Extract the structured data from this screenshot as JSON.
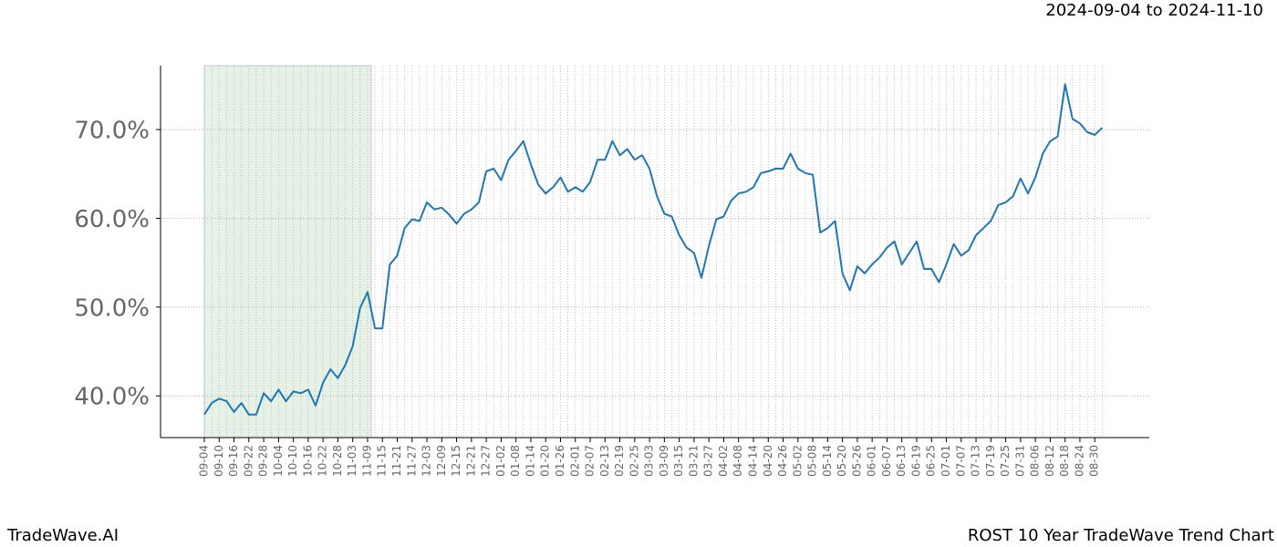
{
  "chart_data": {
    "type": "line",
    "title": "ROST 10 Year TradeWave Trend Chart",
    "brand": "TradeWave.AI",
    "highlight": {
      "start": "09-04",
      "end": "11-09",
      "label": "2024-09-04 to 2024-11-10",
      "color": "#e6f2e6"
    },
    "color": "#1f77b4",
    "grid": true,
    "ylim": [
      35.3,
      77.2
    ],
    "yticks": [
      {
        "value": 40,
        "label": "40.0%"
      },
      {
        "value": 50,
        "label": "50.0%"
      },
      {
        "value": 60,
        "label": "60.0%"
      },
      {
        "value": 70,
        "label": "70.0%"
      }
    ],
    "categories": [
      "09-04",
      null,
      "09-10",
      null,
      "09-16",
      null,
      "09-22",
      null,
      "09-28",
      null,
      "10-04",
      null,
      "10-10",
      null,
      "10-16",
      null,
      "10-22",
      null,
      "10-28",
      null,
      "11-03",
      null,
      "11-09",
      null,
      "11-15",
      null,
      "11-21",
      null,
      "11-27",
      null,
      "12-03",
      null,
      "12-09",
      null,
      "12-15",
      null,
      "12-21",
      null,
      "12-27",
      null,
      "01-02",
      null,
      "01-08",
      null,
      "01-14",
      null,
      "01-20",
      null,
      "01-26",
      null,
      "02-01",
      null,
      "02-07",
      null,
      "02-13",
      null,
      "02-19",
      null,
      "02-25",
      null,
      "03-03",
      null,
      "03-09",
      null,
      "03-15",
      null,
      "03-21",
      null,
      "03-27",
      null,
      "04-02",
      null,
      "04-08",
      null,
      "04-14",
      null,
      "04-20",
      null,
      "04-26",
      null,
      "05-02",
      null,
      "05-08",
      null,
      "05-14",
      null,
      "05-20",
      null,
      "05-26",
      null,
      "06-01",
      null,
      "06-07",
      null,
      "06-13",
      null,
      "06-19",
      null,
      "06-25",
      null,
      "07-01",
      null,
      "07-07",
      null,
      "07-13",
      null,
      "07-19",
      null,
      "07-25",
      null,
      "07-31",
      null,
      "08-06",
      null,
      "08-12",
      null,
      "08-18",
      null,
      "08-24",
      null,
      "08-30",
      null
    ],
    "values": [
      37.9,
      39.2,
      39.7,
      39.4,
      38.2,
      39.2,
      37.9,
      37.9,
      40.3,
      39.4,
      40.7,
      39.4,
      40.5,
      40.3,
      40.7,
      38.9,
      41.5,
      43.0,
      42.0,
      43.5,
      45.6,
      49.9,
      51.7,
      47.6,
      47.6,
      54.8,
      55.8,
      58.9,
      59.9,
      59.7,
      61.8,
      61.0,
      61.2,
      60.4,
      59.4,
      60.5,
      61.0,
      61.8,
      65.3,
      65.6,
      64.3,
      66.6,
      67.6,
      68.7,
      66.1,
      63.8,
      62.8,
      63.5,
      64.6,
      63.0,
      63.5,
      63.0,
      64.1,
      66.6,
      66.6,
      68.7,
      67.1,
      67.8,
      66.6,
      67.1,
      65.6,
      62.5,
      60.5,
      60.2,
      58.1,
      56.7,
      56.1,
      53.3,
      56.9,
      59.9,
      60.2,
      62.0,
      62.8,
      63.0,
      63.5,
      65.1,
      65.3,
      65.6,
      65.6,
      67.3,
      65.6,
      65.1,
      64.9,
      58.4,
      58.9,
      59.7,
      53.8,
      51.9,
      54.6,
      53.8,
      54.8,
      55.6,
      56.7,
      57.4,
      54.8,
      56.1,
      57.4,
      54.3,
      54.3,
      52.8,
      54.8,
      57.1,
      55.8,
      56.4,
      58.1,
      58.9,
      59.7,
      61.5,
      61.8,
      62.5,
      64.5,
      62.8,
      64.6,
      67.3,
      68.7,
      69.2,
      75.1,
      71.2,
      70.7,
      69.7,
      69.4,
      70.2
    ]
  }
}
